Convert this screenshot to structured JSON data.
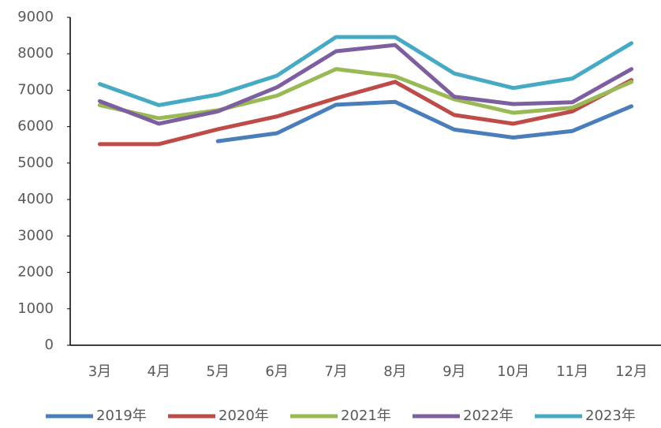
{
  "chart_data": {
    "type": "line",
    "categories": [
      "3月",
      "4月",
      "5月",
      "6月",
      "7月",
      "8月",
      "9月",
      "10月",
      "11月",
      "12月"
    ],
    "series": [
      {
        "name": "2019年",
        "color": "#4a7ebb",
        "values": [
          null,
          null,
          5600,
          5820,
          6600,
          6680,
          5920,
          5700,
          5880,
          6560
        ]
      },
      {
        "name": "2020年",
        "color": "#be4b48",
        "values": [
          5520,
          5520,
          5930,
          6280,
          6780,
          7230,
          6320,
          6080,
          6420,
          7280
        ]
      },
      {
        "name": "2021年",
        "color": "#98b954",
        "values": [
          6590,
          6230,
          6450,
          6850,
          7580,
          7380,
          6750,
          6380,
          6520,
          7230
        ]
      },
      {
        "name": "2022年",
        "color": "#7d5fa0",
        "values": [
          6700,
          6080,
          6420,
          7080,
          8070,
          8240,
          6820,
          6620,
          6670,
          7580
        ]
      },
      {
        "name": "2023年",
        "color": "#46aac5",
        "values": [
          7170,
          6590,
          6880,
          7400,
          8460,
          8460,
          7460,
          7060,
          7320,
          8290
        ]
      }
    ],
    "ylim": [
      0,
      9000
    ],
    "yticks": [
      0,
      1000,
      2000,
      3000,
      4000,
      5000,
      6000,
      7000,
      8000,
      9000
    ],
    "grid": false,
    "legend": "bottom"
  }
}
